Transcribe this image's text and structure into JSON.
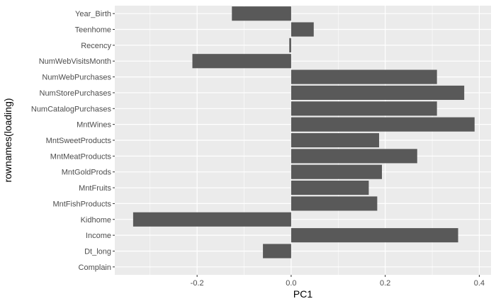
{
  "chart_data": {
    "type": "bar",
    "orientation": "horizontal",
    "categories": [
      "Year_Birth",
      "Teenhome",
      "Recency",
      "NumWebVisitsMonth",
      "NumWebPurchases",
      "NumStorePurchases",
      "NumCatalogPurchases",
      "MntWines",
      "MntSweetProducts",
      "MntMeatProducts",
      "MntGoldProds",
      "MntFruits",
      "MntFishProducts",
      "Kidhome",
      "Income",
      "Dt_long",
      "Complain"
    ],
    "values": [
      -0.126,
      0.048,
      -0.004,
      -0.21,
      0.31,
      0.368,
      0.31,
      0.39,
      0.187,
      0.268,
      0.193,
      0.165,
      0.183,
      -0.336,
      0.355,
      -0.06,
      0.0
    ],
    "xlabel": "PC1",
    "ylabel": "rownames(loading)",
    "xlim": [
      -0.375,
      0.425
    ],
    "xticks": [
      -0.2,
      0.0,
      0.2,
      0.4
    ],
    "xtick_labels": [
      "-0.2",
      "0.0",
      "0.2",
      "0.4"
    ],
    "grid": true,
    "legend": "none",
    "colors": {
      "panel": "#ebebeb",
      "grid_major": "#ffffff",
      "bar": "#595959",
      "tick_text": "#4d4d4d",
      "title_text": "#000000"
    }
  }
}
